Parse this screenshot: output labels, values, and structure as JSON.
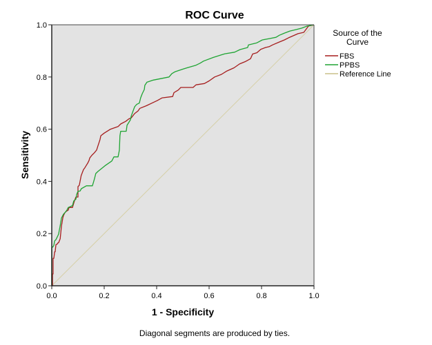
{
  "chart_data": {
    "type": "line",
    "title": "ROC Curve",
    "xlabel": "1 - Specificity",
    "ylabel": "Sensitivity",
    "xlim": [
      0,
      1
    ],
    "ylim": [
      0,
      1
    ],
    "xticks": [
      "0.0",
      "0.2",
      "0.4",
      "0.6",
      "0.8",
      "1.0"
    ],
    "yticks": [
      "0.0",
      "0.2",
      "0.4",
      "0.6",
      "0.8",
      "1.0"
    ],
    "grid": false,
    "legend": {
      "title_line1": "Source of the",
      "title_line2": "Curve",
      "position": "right"
    },
    "footnote": "Diagonal segments are produced by ties.",
    "series": [
      {
        "name": "FBS",
        "color": "#A51C1C",
        "points": [
          [
            0,
            0
          ],
          [
            0.003,
            0
          ],
          [
            0.003,
            0.045
          ],
          [
            0.005,
            0.045
          ],
          [
            0.005,
            0.105
          ],
          [
            0.008,
            0.105
          ],
          [
            0.011,
            0.13
          ],
          [
            0.013,
            0.13
          ],
          [
            0.016,
            0.158
          ],
          [
            0.021,
            0.16
          ],
          [
            0.024,
            0.165
          ],
          [
            0.026,
            0.165
          ],
          [
            0.032,
            0.18
          ],
          [
            0.037,
            0.23
          ],
          [
            0.039,
            0.24
          ],
          [
            0.042,
            0.26
          ],
          [
            0.045,
            0.27
          ],
          [
            0.05,
            0.28
          ],
          [
            0.055,
            0.285
          ],
          [
            0.063,
            0.29
          ],
          [
            0.066,
            0.3
          ],
          [
            0.079,
            0.3
          ],
          [
            0.084,
            0.317
          ],
          [
            0.087,
            0.327
          ],
          [
            0.092,
            0.34
          ],
          [
            0.1,
            0.34
          ],
          [
            0.1,
            0.38
          ],
          [
            0.105,
            0.385
          ],
          [
            0.108,
            0.4
          ],
          [
            0.112,
            0.422
          ],
          [
            0.117,
            0.435
          ],
          [
            0.121,
            0.445
          ],
          [
            0.126,
            0.452
          ],
          [
            0.132,
            0.462
          ],
          [
            0.137,
            0.47
          ],
          [
            0.142,
            0.48
          ],
          [
            0.145,
            0.49
          ],
          [
            0.153,
            0.5
          ],
          [
            0.163,
            0.51
          ],
          [
            0.171,
            0.52
          ],
          [
            0.176,
            0.536
          ],
          [
            0.184,
            0.56
          ],
          [
            0.187,
            0.575
          ],
          [
            0.2,
            0.585
          ],
          [
            0.224,
            0.6
          ],
          [
            0.253,
            0.61
          ],
          [
            0.263,
            0.62
          ],
          [
            0.282,
            0.63
          ],
          [
            0.295,
            0.64
          ],
          [
            0.303,
            0.643
          ],
          [
            0.316,
            0.66
          ],
          [
            0.329,
            0.67
          ],
          [
            0.336,
            0.68
          ],
          [
            0.361,
            0.69
          ],
          [
            0.382,
            0.7
          ],
          [
            0.403,
            0.71
          ],
          [
            0.421,
            0.72
          ],
          [
            0.461,
            0.725
          ],
          [
            0.466,
            0.74
          ],
          [
            0.482,
            0.75
          ],
          [
            0.492,
            0.76
          ],
          [
            0.539,
            0.76
          ],
          [
            0.55,
            0.77
          ],
          [
            0.582,
            0.775
          ],
          [
            0.6,
            0.785
          ],
          [
            0.621,
            0.8
          ],
          [
            0.647,
            0.81
          ],
          [
            0.668,
            0.823
          ],
          [
            0.695,
            0.835
          ],
          [
            0.716,
            0.85
          ],
          [
            0.74,
            0.86
          ],
          [
            0.758,
            0.87
          ],
          [
            0.766,
            0.888
          ],
          [
            0.782,
            0.893
          ],
          [
            0.797,
            0.906
          ],
          [
            0.815,
            0.913
          ],
          [
            0.829,
            0.916
          ],
          [
            0.842,
            0.923
          ],
          [
            0.868,
            0.934
          ],
          [
            0.887,
            0.942
          ],
          [
            0.903,
            0.95
          ],
          [
            0.921,
            0.958
          ],
          [
            0.939,
            0.966
          ],
          [
            0.961,
            0.971
          ],
          [
            0.979,
            0.995
          ],
          [
            1,
            1
          ]
        ]
      },
      {
        "name": "PPBS",
        "color": "#1EA432",
        "points": [
          [
            0,
            0
          ],
          [
            0,
            0.145
          ],
          [
            0.005,
            0.15
          ],
          [
            0.008,
            0.155
          ],
          [
            0.011,
            0.172
          ],
          [
            0.016,
            0.177
          ],
          [
            0.021,
            0.187
          ],
          [
            0.026,
            0.198
          ],
          [
            0.032,
            0.23
          ],
          [
            0.037,
            0.26
          ],
          [
            0.045,
            0.275
          ],
          [
            0.05,
            0.28
          ],
          [
            0.058,
            0.29
          ],
          [
            0.063,
            0.3
          ],
          [
            0.079,
            0.307
          ],
          [
            0.084,
            0.325
          ],
          [
            0.092,
            0.332
          ],
          [
            0.095,
            0.35
          ],
          [
            0.1,
            0.362
          ],
          [
            0.108,
            0.363
          ],
          [
            0.113,
            0.372
          ],
          [
            0.132,
            0.383
          ],
          [
            0.155,
            0.383
          ],
          [
            0.16,
            0.4
          ],
          [
            0.163,
            0.41
          ],
          [
            0.168,
            0.43
          ],
          [
            0.176,
            0.438
          ],
          [
            0.203,
            0.46
          ],
          [
            0.229,
            0.478
          ],
          [
            0.237,
            0.494
          ],
          [
            0.253,
            0.494
          ],
          [
            0.258,
            0.52
          ],
          [
            0.26,
            0.575
          ],
          [
            0.263,
            0.592
          ],
          [
            0.284,
            0.592
          ],
          [
            0.287,
            0.615
          ],
          [
            0.3,
            0.636
          ],
          [
            0.303,
            0.65
          ],
          [
            0.316,
            0.686
          ],
          [
            0.324,
            0.695
          ],
          [
            0.334,
            0.7
          ],
          [
            0.339,
            0.72
          ],
          [
            0.345,
            0.736
          ],
          [
            0.353,
            0.752
          ],
          [
            0.355,
            0.768
          ],
          [
            0.363,
            0.78
          ],
          [
            0.387,
            0.788
          ],
          [
            0.447,
            0.8
          ],
          [
            0.458,
            0.813
          ],
          [
            0.47,
            0.82
          ],
          [
            0.5,
            0.83
          ],
          [
            0.518,
            0.836
          ],
          [
            0.55,
            0.845
          ],
          [
            0.566,
            0.853
          ],
          [
            0.579,
            0.861
          ],
          [
            0.616,
            0.875
          ],
          [
            0.647,
            0.885
          ],
          [
            0.66,
            0.889
          ],
          [
            0.697,
            0.895
          ],
          [
            0.718,
            0.905
          ],
          [
            0.747,
            0.913
          ],
          [
            0.75,
            0.923
          ],
          [
            0.782,
            0.931
          ],
          [
            0.803,
            0.942
          ],
          [
            0.829,
            0.947
          ],
          [
            0.855,
            0.952
          ],
          [
            0.868,
            0.96
          ],
          [
            0.887,
            0.968
          ],
          [
            0.908,
            0.976
          ],
          [
            0.934,
            0.982
          ],
          [
            0.953,
            0.987
          ],
          [
            0.974,
            0.995
          ],
          [
            1,
            1
          ]
        ]
      },
      {
        "name": "Reference Line",
        "color": "#D6CFA6",
        "points": [
          [
            0,
            0
          ],
          [
            1,
            1
          ]
        ]
      }
    ]
  },
  "style": {
    "plot_background": "#E3E3E3",
    "axis_color": "#222222"
  }
}
